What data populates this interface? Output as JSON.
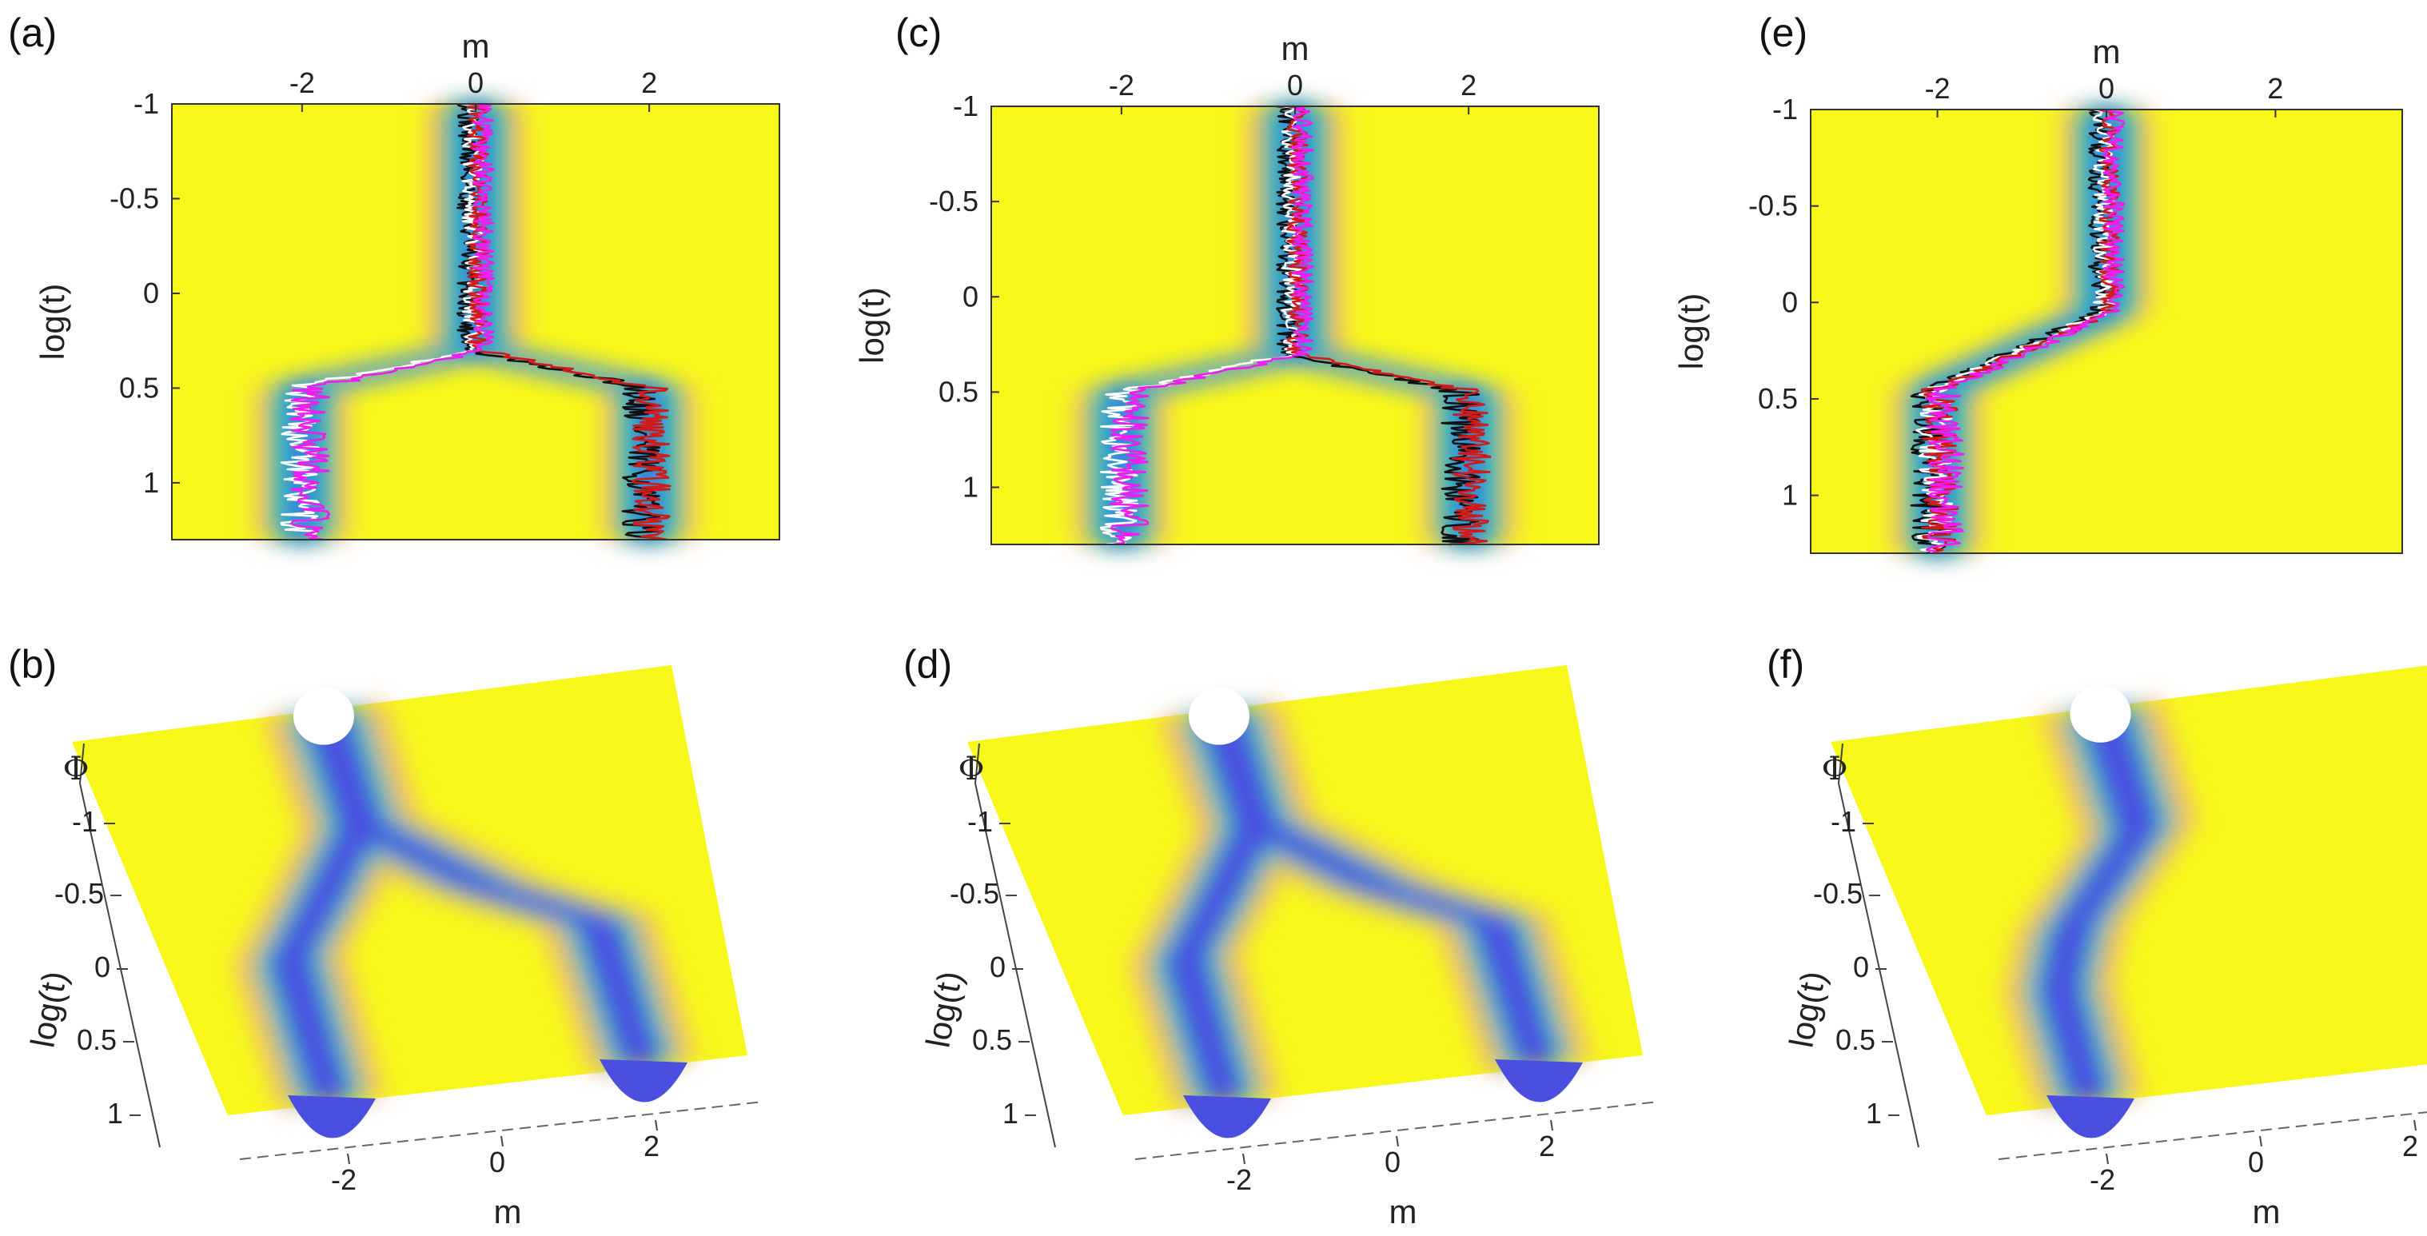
{
  "figure": {
    "panels_top": [
      {
        "label": "(a)",
        "xlabel": "m",
        "ylabel": "log(t)",
        "xticks": [
          "-2",
          "0",
          "2"
        ],
        "yticks": [
          "-1",
          "-0.5",
          "0",
          "0.5",
          "1"
        ]
      },
      {
        "label": "(c)",
        "xlabel": "m",
        "ylabel": "log(t)",
        "xticks": [
          "-2",
          "0",
          "2"
        ],
        "yticks": [
          "-1",
          "-0.5",
          "0",
          "0.5",
          "1"
        ]
      },
      {
        "label": "(e)",
        "xlabel": "m",
        "ylabel": "log(t)",
        "xticks": [
          "-2",
          "0",
          "2"
        ],
        "yticks": [
          "-1",
          "-0.5",
          "0",
          "0.5",
          "1"
        ]
      }
    ],
    "panels_bottom": [
      {
        "label": "(b)",
        "xlabel": "m",
        "ylabel": "log(t)",
        "zlabel": "Φ",
        "xticks": [
          "-2",
          "0",
          "2"
        ],
        "yticks": [
          "-1",
          "-0.5",
          "0",
          "0.5",
          "1"
        ]
      },
      {
        "label": "(d)",
        "xlabel": "m",
        "ylabel": "log(t)",
        "zlabel": "Φ",
        "xticks": [
          "-2",
          "0",
          "2"
        ],
        "yticks": [
          "-1",
          "-0.5",
          "0",
          "0.5",
          "1"
        ]
      },
      {
        "label": "(f)",
        "xlabel": "m",
        "ylabel": "log(t)",
        "zlabel": "Φ",
        "xticks": [
          "-2",
          "0",
          "2"
        ],
        "yticks": [
          "-1",
          "-0.5",
          "0",
          "0.5",
          "1"
        ]
      }
    ]
  },
  "colors": {
    "background_field": "#f7f71a",
    "valley": "#3b7dde",
    "valley_deep": "#4a4fe0",
    "valley_edge": "#25c7b5",
    "traj_black": "#111111",
    "traj_white": "#ffffff",
    "traj_red": "#d11a1a",
    "traj_magenta": "#f01cf0"
  },
  "chart_data": [
    {
      "type": "heatmap",
      "panel": "(a)",
      "description_scale": "log",
      "xlabel": "m",
      "ylabel": "log(t)",
      "xlim": [
        -3.5,
        3.5
      ],
      "ylim": [
        -1,
        1.3
      ],
      "y_reversed": true,
      "valley_path": [
        {
          "t": -1.0,
          "m": [
            0.0
          ]
        },
        {
          "t": 0.3,
          "m": [
            0.0
          ]
        },
        {
          "t": 0.5,
          "m": [
            -2.0,
            2.0
          ]
        },
        {
          "t": 1.3,
          "m": [
            -2.0,
            2.0
          ]
        }
      ],
      "trajectories": [
        "black",
        "white",
        "red",
        "magenta"
      ]
    },
    {
      "type": "heatmap",
      "panel": "(c)",
      "xlabel": "m",
      "ylabel": "log(t)",
      "xlim": [
        -3.5,
        3.5
      ],
      "ylim": [
        -1,
        1.3
      ],
      "y_reversed": true,
      "valley_path": [
        {
          "t": -1.0,
          "m": [
            0.0
          ]
        },
        {
          "t": 0.3,
          "m": [
            0.0
          ]
        },
        {
          "t": 0.5,
          "m": [
            -2.0,
            2.0
          ]
        },
        {
          "t": 1.3,
          "m": [
            -2.0,
            2.0
          ]
        }
      ],
      "trajectories": [
        "black",
        "white",
        "red",
        "magenta"
      ]
    },
    {
      "type": "heatmap",
      "panel": "(e)",
      "xlabel": "m",
      "ylabel": "log(t)",
      "xlim": [
        -3.5,
        3.5
      ],
      "ylim": [
        -1,
        1.3
      ],
      "y_reversed": true,
      "valley_path": [
        {
          "t": -1.0,
          "m": [
            0.0
          ]
        },
        {
          "t": 0.05,
          "m": [
            0.0
          ]
        },
        {
          "t": 0.45,
          "m": [
            -2.0
          ]
        },
        {
          "t": 1.3,
          "m": [
            -2.0
          ]
        }
      ],
      "trajectories": [
        "black",
        "white",
        "red",
        "magenta"
      ]
    }
  ]
}
